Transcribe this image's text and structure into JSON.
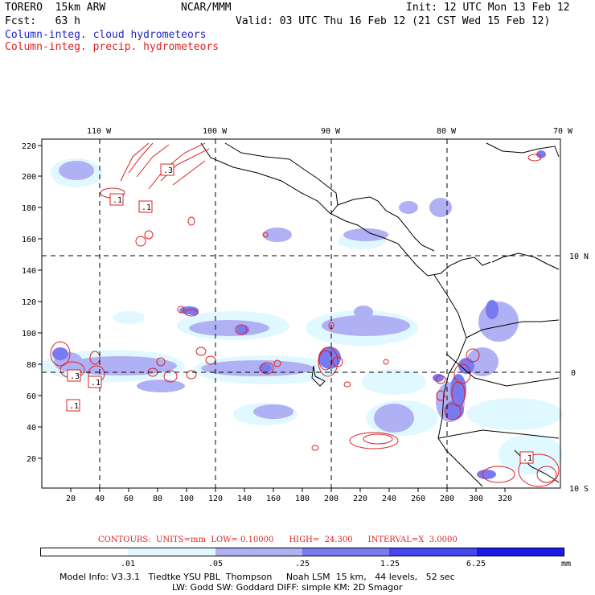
{
  "header": {
    "model_title": "TORERO  15km ARW",
    "org": "NCAR/MMM",
    "init": "Init: 12 UTC Mon 13 Feb 12",
    "fcst": "Fcst:   63 h",
    "valid": "Valid: 03 UTC Thu 16 Feb 12 (21 CST Wed 15 Feb 12)",
    "field_cloud": "Column-integ. cloud hydrometeors",
    "field_precip": "Column-integ. precip. hydrometeors"
  },
  "map": {
    "lon_labels": [
      "110 W",
      "100 W",
      "90 W",
      "80 W",
      "70 W"
    ],
    "lat_labels": [
      "10 N",
      "0",
      "10 S"
    ],
    "x_ticks": [
      "20",
      "40",
      "60",
      "80",
      "100",
      "120",
      "140",
      "160",
      "180",
      "200",
      "220",
      "240",
      "260",
      "280",
      "300",
      "320"
    ],
    "y_ticks": [
      "220",
      "200",
      "180",
      "160",
      "140",
      "120",
      "100",
      "80",
      "60",
      "40",
      "20"
    ],
    "contour_labels": [
      ".3",
      ".1",
      ".1",
      ".3",
      ".1",
      ".1",
      ".1"
    ]
  },
  "contours": {
    "info": "CONTOURS:  UNITS=mm  LOW= 0.10000      HIGH=  24.300      INTERVAL=X  3.0000"
  },
  "colorbar": {
    "labels": [
      ".01",
      ".05",
      ".25",
      "1.25",
      "6.25",
      "mm"
    ],
    "colors": [
      "#ffffff",
      "#e0f8ff",
      "#b0b0f4",
      "#7a7af0",
      "#4646ee",
      "#1a1aea"
    ]
  },
  "footer": {
    "line1": "Model Info: V3.3.1   Tiedtke YSU PBL  Thompson     Noah LSM  15 km,   44 levels,   52 sec",
    "line2": "LW: Godd SW: Goddard DIFF: simple KM: 2D Smagor"
  }
}
